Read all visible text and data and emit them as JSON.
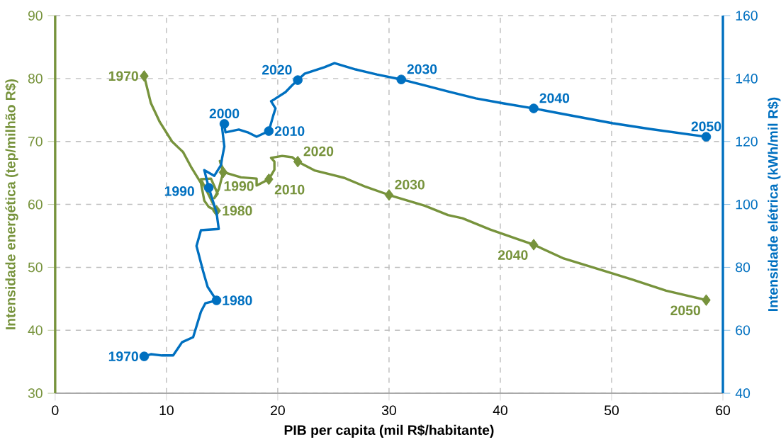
{
  "chart_data": {
    "type": "line",
    "xlabel": "PIB per capita (mil R$/habitante)",
    "ylabel": "Intensidade energética (tep/milhão R$)",
    "y2label": "Intensidade elétrica (kWh/mil R$)",
    "xlim": [
      0,
      60
    ],
    "xticks": [
      0,
      10,
      20,
      30,
      40,
      50,
      60
    ],
    "ylim": [
      30,
      90
    ],
    "yticks": [
      30,
      40,
      50,
      60,
      70,
      80,
      90
    ],
    "y2lim": [
      40,
      160
    ],
    "y2ticks": [
      40,
      60,
      80,
      100,
      120,
      140,
      160
    ],
    "grid": true,
    "line_style": "solid",
    "series": [
      {
        "axis": "y",
        "color": "#77933c",
        "marker": "none",
        "x": [
          8.0,
          8.6,
          9.4,
          10.5,
          11.5,
          12.2,
          13.1,
          13.4,
          13.8,
          14.5,
          13.1,
          14.0,
          14.6,
          14.3,
          14.7,
          15.1,
          14.8,
          15.2,
          16.7,
          18.1,
          18.1,
          19.2,
          19.7,
          19.7,
          19.4,
          20.4,
          21.3,
          21.8,
          23.3,
          25.1,
          26.0,
          27.9,
          30.0,
          33.2,
          35.3,
          36.6,
          39.1,
          41.7,
          43.0,
          45.7,
          48.5,
          51.8,
          54.9,
          58.5
        ],
        "values": [
          80.4,
          76.1,
          73.1,
          70.0,
          68.3,
          66.0,
          63.4,
          60.6,
          59.6,
          59.0,
          64.0,
          64.1,
          61.7,
          61.0,
          62.4,
          65.1,
          66.9,
          65.1,
          64.3,
          64.1,
          63.0,
          64.0,
          65.5,
          66.8,
          67.4,
          67.7,
          67.5,
          66.8,
          65.4,
          64.6,
          64.2,
          62.8,
          61.5,
          59.8,
          58.3,
          57.8,
          56.0,
          54.4,
          53.6,
          51.4,
          49.9,
          48.1,
          46.3,
          44.8
        ]
      },
      {
        "type": "scatter",
        "axis": "y",
        "color": "#77933c",
        "marker": "diamond",
        "name": "1970",
        "x": [
          8.0
        ],
        "values": [
          80.4
        ]
      },
      {
        "type": "scatter",
        "axis": "y",
        "color": "#77933c",
        "marker": "diamond",
        "name": "1980",
        "x": [
          14.5
        ],
        "values": [
          59.0
        ]
      },
      {
        "type": "scatter",
        "axis": "y",
        "color": "#77933c",
        "marker": "diamond",
        "name": "1990",
        "x": [
          15.1
        ],
        "values": [
          65.1
        ]
      },
      {
        "type": "scatter",
        "axis": "y",
        "color": "#77933c",
        "marker": "diamond",
        "name": "2010",
        "x": [
          19.2
        ],
        "values": [
          64.0
        ]
      },
      {
        "type": "scatter",
        "axis": "y",
        "color": "#77933c",
        "marker": "diamond",
        "name": "2020",
        "x": [
          21.8
        ],
        "values": [
          66.8
        ]
      },
      {
        "type": "scatter",
        "axis": "y",
        "color": "#77933c",
        "marker": "diamond",
        "name": "2030",
        "x": [
          30.0
        ],
        "values": [
          61.5
        ]
      },
      {
        "type": "scatter",
        "axis": "y",
        "color": "#77933c",
        "marker": "diamond",
        "name": "2040",
        "x": [
          43.0
        ],
        "values": [
          53.6
        ]
      },
      {
        "type": "scatter",
        "axis": "y",
        "color": "#77933c",
        "marker": "diamond",
        "name": "2050",
        "x": [
          58.5
        ],
        "values": [
          44.8
        ]
      },
      {
        "axis": "y2",
        "color": "#0070c0",
        "marker": "none",
        "x": [
          8.0,
          8.6,
          9.6,
          10.6,
          11.4,
          12.4,
          13.1,
          13.5,
          14.5,
          13.7,
          13.3,
          12.7,
          13.1,
          14.7,
          14.5,
          14.3,
          13.8,
          13.4,
          14.3,
          14.9,
          15.0,
          15.2,
          15.0,
          15.2,
          15.3,
          16.5,
          17.3,
          18.1,
          19.2,
          19.6,
          19.8,
          19.4,
          19.7,
          20.7,
          21.3,
          21.8,
          22.4,
          24.2,
          25.1,
          27.0,
          28.9,
          31.1,
          33.1,
          35.3,
          37.8,
          40.3,
          43.0,
          46.0,
          50.1,
          53.4,
          58.5
        ],
        "values": [
          51.7,
          52.4,
          52.0,
          52.0,
          56.2,
          57.8,
          65.9,
          68.6,
          69.5,
          73.8,
          78.7,
          86.8,
          91.8,
          92.2,
          97.4,
          99.7,
          105.3,
          110.9,
          109.1,
          112.5,
          114.7,
          118.4,
          124.4,
          125.6,
          122.9,
          123.8,
          122.9,
          121.5,
          123.3,
          128.3,
          130.5,
          132.8,
          133.4,
          135.7,
          137.9,
          139.5,
          141.5,
          143.6,
          144.9,
          142.9,
          141.3,
          139.7,
          137.9,
          135.9,
          133.7,
          132.1,
          130.5,
          128.5,
          125.8,
          124.0,
          121.5
        ]
      },
      {
        "type": "scatter",
        "axis": "y2",
        "color": "#0070c0",
        "marker": "circle",
        "name": "1970",
        "x": [
          8.0
        ],
        "values": [
          51.7
        ]
      },
      {
        "type": "scatter",
        "axis": "y2",
        "color": "#0070c0",
        "marker": "circle",
        "name": "1980",
        "x": [
          14.5
        ],
        "values": [
          69.5
        ]
      },
      {
        "type": "scatter",
        "axis": "y2",
        "color": "#0070c0",
        "marker": "circle",
        "name": "1990",
        "x": [
          13.8
        ],
        "values": [
          105.3
        ]
      },
      {
        "type": "scatter",
        "axis": "y2",
        "color": "#0070c0",
        "marker": "circle",
        "name": "2000",
        "x": [
          15.2
        ],
        "values": [
          125.6
        ]
      },
      {
        "type": "scatter",
        "axis": "y2",
        "color": "#0070c0",
        "marker": "circle",
        "name": "2010",
        "x": [
          19.2
        ],
        "values": [
          123.3
        ]
      },
      {
        "type": "scatter",
        "axis": "y2",
        "color": "#0070c0",
        "marker": "circle",
        "name": "2020",
        "x": [
          21.8
        ],
        "values": [
          139.5
        ]
      },
      {
        "type": "scatter",
        "axis": "y2",
        "color": "#0070c0",
        "marker": "circle",
        "name": "2030",
        "x": [
          31.1
        ],
        "values": [
          139.7
        ]
      },
      {
        "type": "scatter",
        "axis": "y2",
        "color": "#0070c0",
        "marker": "circle",
        "name": "2040",
        "x": [
          43.0
        ],
        "values": [
          130.5
        ]
      },
      {
        "type": "scatter",
        "axis": "y2",
        "color": "#0070c0",
        "marker": "circle",
        "name": "2050",
        "x": [
          58.5
        ],
        "values": [
          121.5
        ]
      }
    ]
  }
}
